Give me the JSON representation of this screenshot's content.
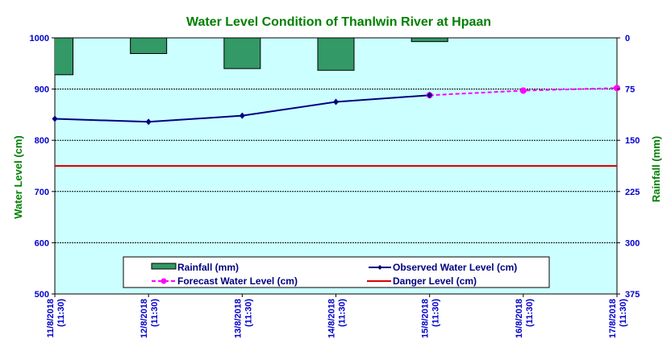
{
  "chart_data": {
    "type": "bar+line",
    "title": "Water Level Condition of Thanlwin  River at  Hpaan",
    "ylabel": "Water Level (cm)",
    "y2label": "Rainfall (mm)",
    "ylim": [
      500,
      1000
    ],
    "y2lim": [
      0,
      375
    ],
    "y2_reversed": true,
    "yticks": [
      "500",
      "600",
      "700",
      "800",
      "900",
      "1000"
    ],
    "y2ticks": [
      "0",
      "75",
      "150",
      "225",
      "300",
      "375"
    ],
    "categories": [
      "11/8/2018 (11:30)",
      "12/8/2018 (11:30)",
      "13/8/2018 (11:30)",
      "14/8/2018 (11:30)",
      "15/8/2018 (11:30)",
      "16/8/2018 (11:30)",
      "17/8/2018 (11:30)"
    ],
    "grid": "horizontal dashed at 900, 800, 700, 600",
    "legend_position": "bottom-center",
    "series": [
      {
        "name": "Rainfall (mm)",
        "type": "bar",
        "axis": "right",
        "color": "#339966",
        "values": [
          54,
          23,
          45,
          47.5,
          5.5,
          null,
          null
        ]
      },
      {
        "name": "Observed Water Level (cm)",
        "type": "line",
        "axis": "left",
        "color": "#000080",
        "values": [
          842,
          836,
          848,
          875,
          888,
          null,
          null
        ]
      },
      {
        "name": "Forecast Water Level (cm)",
        "type": "line-dashed",
        "axis": "left",
        "color": "#ff00ff",
        "values": [
          null,
          null,
          null,
          null,
          888,
          897,
          902
        ]
      },
      {
        "name": "Danger Level (cm)",
        "type": "hline",
        "axis": "left",
        "color": "#dd0000",
        "value": 750
      }
    ],
    "legend_order": [
      0,
      1,
      2,
      3
    ]
  }
}
